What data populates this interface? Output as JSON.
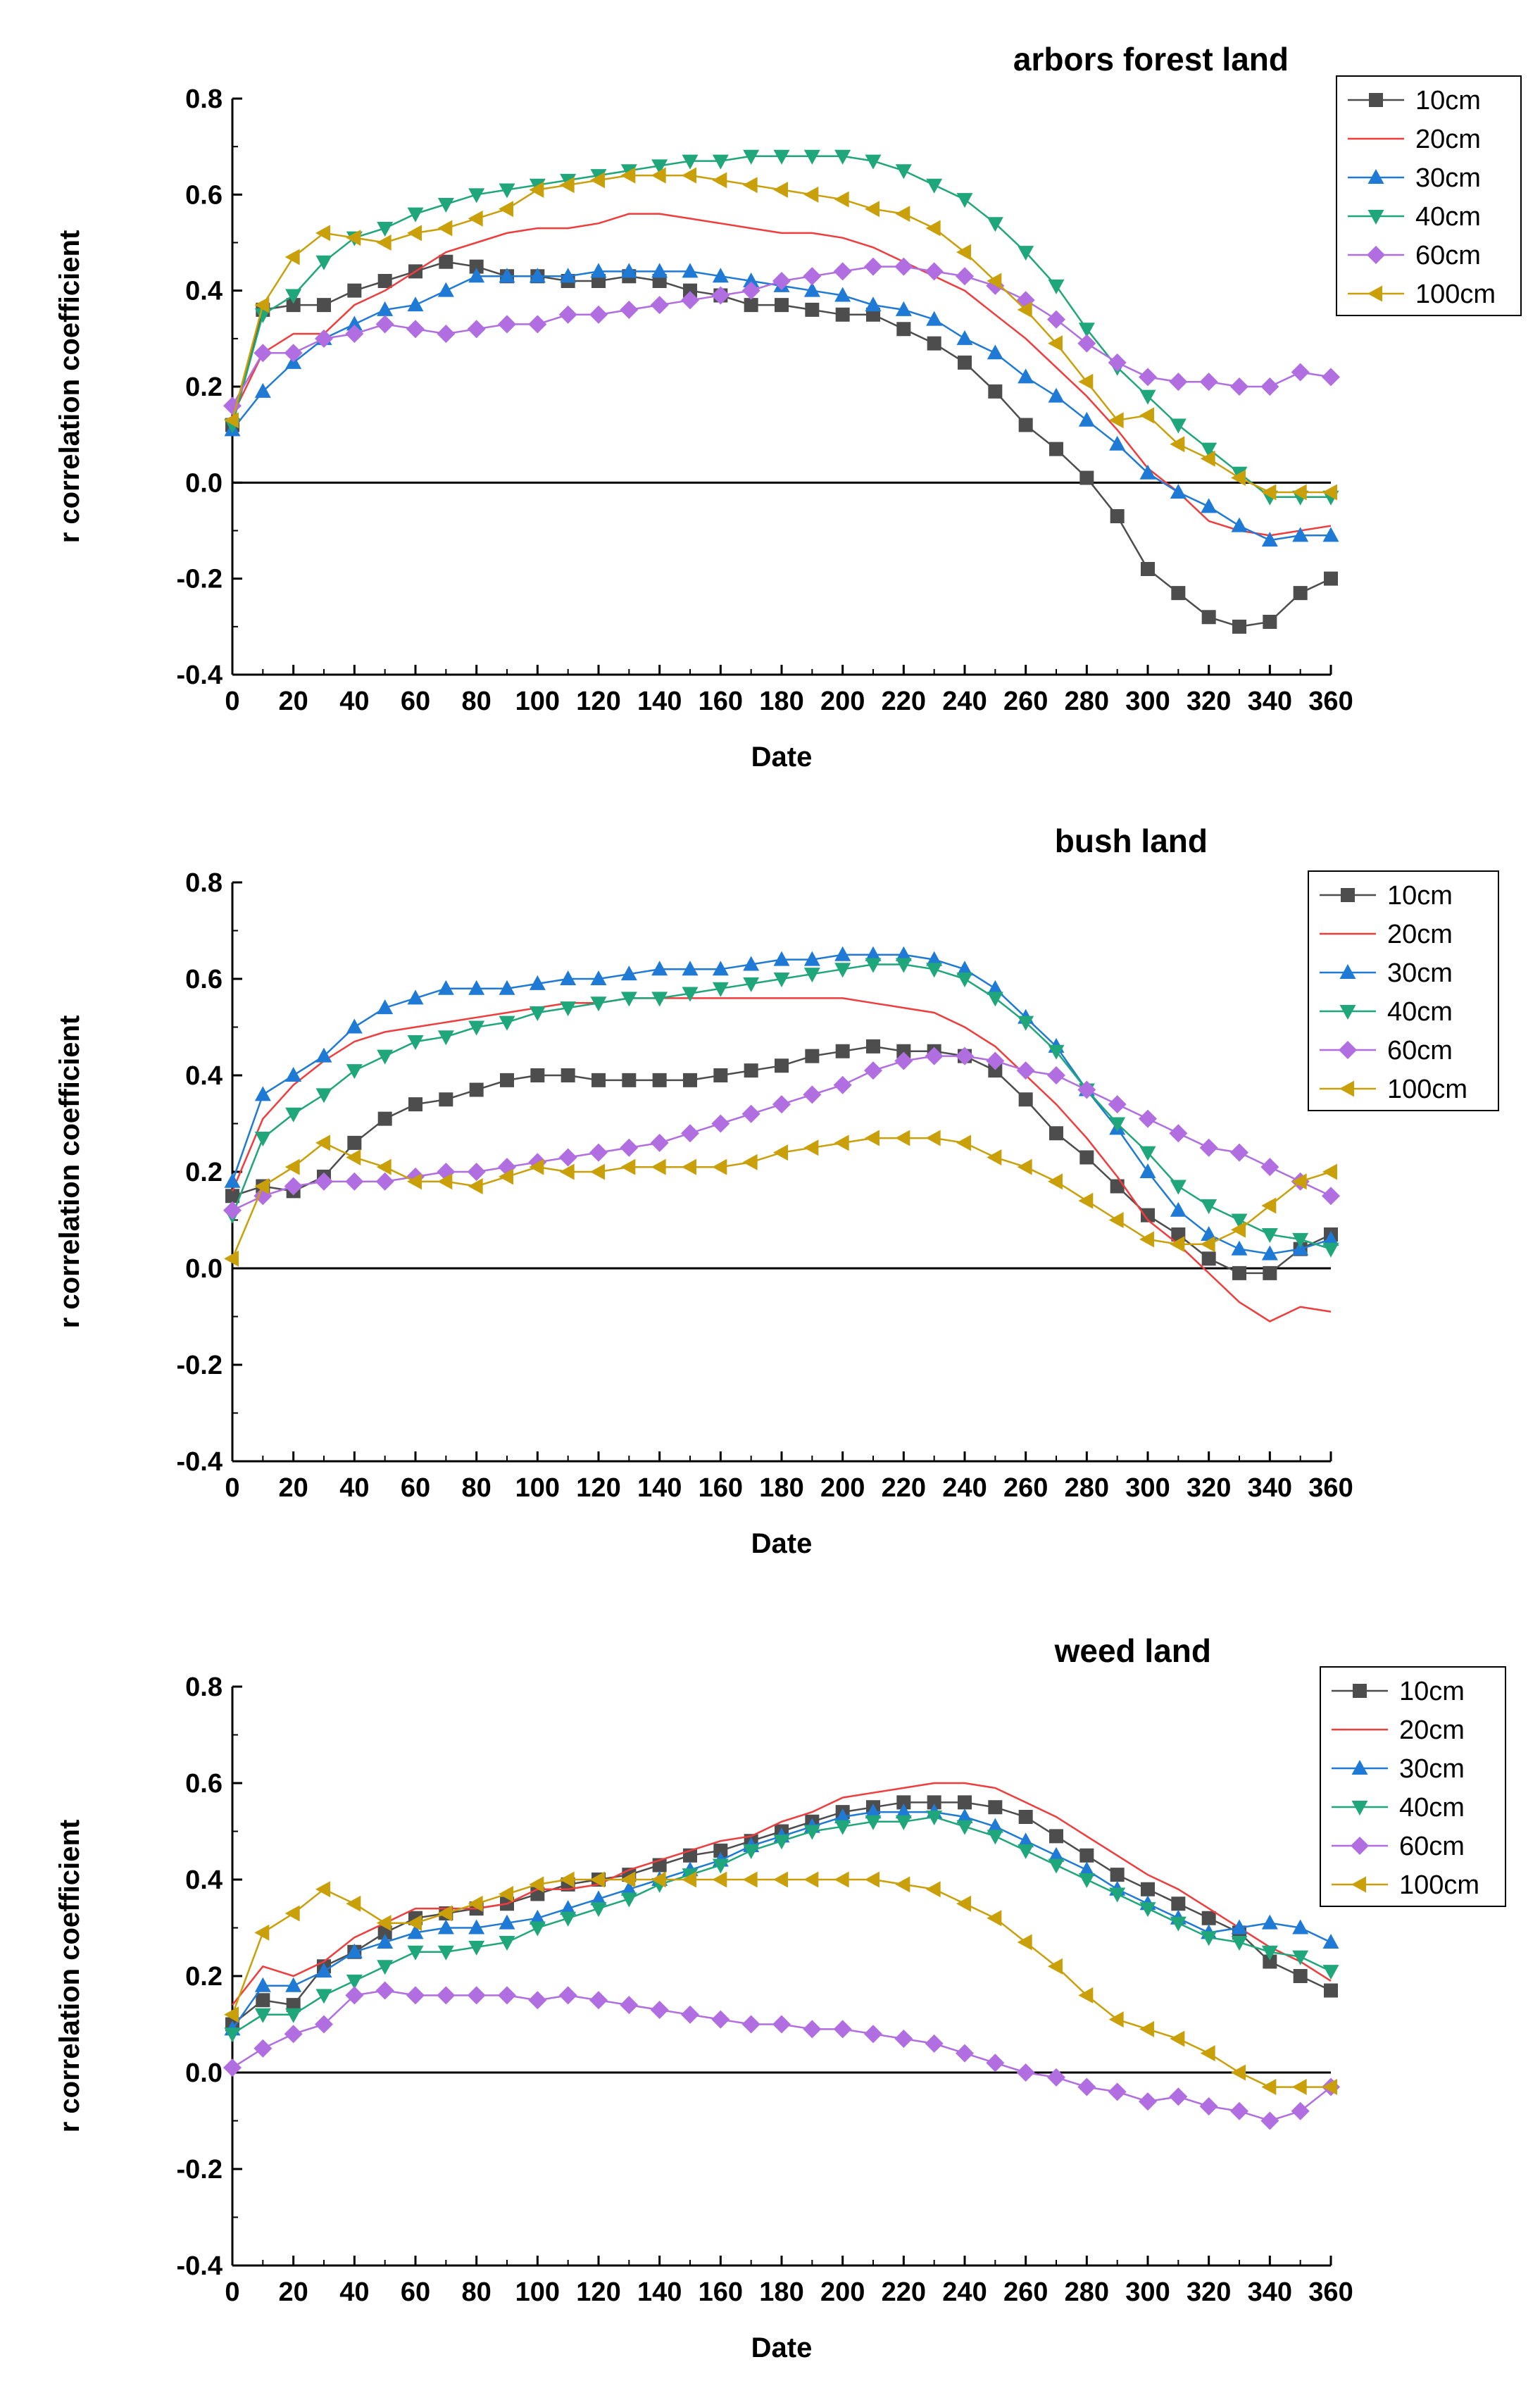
{
  "chart_data": [
    {
      "type": "line",
      "title": "arbors forest land",
      "xlabel": "Date",
      "ylabel": "r  correlation coefficient",
      "xlim": [
        0,
        360
      ],
      "ylim": [
        -0.4,
        0.8
      ],
      "xticks": [
        0,
        20,
        40,
        60,
        80,
        100,
        120,
        140,
        160,
        180,
        200,
        220,
        240,
        260,
        280,
        300,
        320,
        340,
        360
      ],
      "yticks": [
        -0.4,
        -0.2,
        0.0,
        0.2,
        0.4,
        0.6,
        0.8
      ],
      "x": [
        0,
        10,
        20,
        30,
        40,
        50,
        60,
        70,
        80,
        90,
        100,
        110,
        120,
        130,
        140,
        150,
        160,
        170,
        180,
        190,
        200,
        210,
        220,
        230,
        240,
        250,
        260,
        270,
        280,
        290,
        300,
        310,
        320,
        330,
        340,
        350,
        360
      ],
      "series": [
        {
          "name": "10cm",
          "color": "#4d4d4d",
          "marker": "square",
          "values": [
            0.12,
            0.36,
            0.37,
            0.37,
            0.4,
            0.42,
            0.44,
            0.46,
            0.45,
            0.43,
            0.43,
            0.42,
            0.42,
            0.43,
            0.42,
            0.4,
            0.39,
            0.37,
            0.37,
            0.36,
            0.35,
            0.35,
            0.32,
            0.29,
            0.25,
            0.19,
            0.12,
            0.07,
            0.01,
            -0.07,
            -0.18,
            -0.23,
            -0.28,
            -0.3,
            -0.29,
            -0.23,
            -0.2
          ]
        },
        {
          "name": "20cm",
          "color": "#f03c3c",
          "marker": "circle",
          "values": [
            0.14,
            0.27,
            0.31,
            0.31,
            0.37,
            0.4,
            0.44,
            0.48,
            0.5,
            0.52,
            0.53,
            0.53,
            0.54,
            0.56,
            0.56,
            0.55,
            0.54,
            0.53,
            0.52,
            0.52,
            0.51,
            0.49,
            0.46,
            0.43,
            0.4,
            0.35,
            0.3,
            0.24,
            0.18,
            0.11,
            0.03,
            -0.02,
            -0.08,
            -0.1,
            -0.11,
            -0.1,
            -0.09
          ]
        },
        {
          "name": "30cm",
          "color": "#1f7ad6",
          "marker": "triangle-up",
          "values": [
            0.11,
            0.19,
            0.25,
            0.3,
            0.33,
            0.36,
            0.37,
            0.4,
            0.43,
            0.43,
            0.43,
            0.43,
            0.44,
            0.44,
            0.44,
            0.44,
            0.43,
            0.42,
            0.41,
            0.4,
            0.39,
            0.37,
            0.36,
            0.34,
            0.3,
            0.27,
            0.22,
            0.18,
            0.13,
            0.08,
            0.02,
            -0.02,
            -0.05,
            -0.09,
            -0.12,
            -0.11,
            -0.11
          ]
        },
        {
          "name": "40cm",
          "color": "#1fa67a",
          "marker": "triangle-down",
          "values": [
            0.12,
            0.35,
            0.39,
            0.46,
            0.51,
            0.53,
            0.56,
            0.58,
            0.6,
            0.61,
            0.62,
            0.63,
            0.64,
            0.65,
            0.66,
            0.67,
            0.67,
            0.68,
            0.68,
            0.68,
            0.68,
            0.67,
            0.65,
            0.62,
            0.59,
            0.54,
            0.48,
            0.41,
            0.32,
            0.24,
            0.18,
            0.12,
            0.07,
            0.02,
            -0.03,
            -0.03,
            -0.03
          ]
        },
        {
          "name": "60cm",
          "color": "#b06ee0",
          "marker": "diamond",
          "values": [
            0.16,
            0.27,
            0.27,
            0.3,
            0.31,
            0.33,
            0.32,
            0.31,
            0.32,
            0.33,
            0.33,
            0.35,
            0.35,
            0.36,
            0.37,
            0.38,
            0.39,
            0.4,
            0.42,
            0.43,
            0.44,
            0.45,
            0.45,
            0.44,
            0.43,
            0.41,
            0.38,
            0.34,
            0.29,
            0.25,
            0.22,
            0.21,
            0.21,
            0.2,
            0.2,
            0.23,
            0.22
          ]
        },
        {
          "name": "100cm",
          "color": "#c9a00a",
          "marker": "triangle-left",
          "values": [
            0.13,
            0.37,
            0.47,
            0.52,
            0.51,
            0.5,
            0.52,
            0.53,
            0.55,
            0.57,
            0.61,
            0.62,
            0.63,
            0.64,
            0.64,
            0.64,
            0.63,
            0.62,
            0.61,
            0.6,
            0.59,
            0.57,
            0.56,
            0.53,
            0.48,
            0.42,
            0.36,
            0.29,
            0.21,
            0.13,
            0.14,
            0.08,
            0.05,
            0.01,
            -0.02,
            -0.02,
            -0.02
          ]
        }
      ]
    },
    {
      "type": "line",
      "title": "bush land",
      "xlabel": "Date",
      "ylabel": "r  correlation coefficient",
      "xlim": [
        0,
        360
      ],
      "ylim": [
        -0.4,
        0.8
      ],
      "xticks": [
        0,
        20,
        40,
        60,
        80,
        100,
        120,
        140,
        160,
        180,
        200,
        220,
        240,
        260,
        280,
        300,
        320,
        340,
        360
      ],
      "yticks": [
        -0.4,
        -0.2,
        0.0,
        0.2,
        0.4,
        0.6,
        0.8
      ],
      "x": [
        0,
        10,
        20,
        30,
        40,
        50,
        60,
        70,
        80,
        90,
        100,
        110,
        120,
        130,
        140,
        150,
        160,
        170,
        180,
        190,
        200,
        210,
        220,
        230,
        240,
        250,
        260,
        270,
        280,
        290,
        300,
        310,
        320,
        330,
        340,
        350,
        360
      ],
      "series": [
        {
          "name": "10cm",
          "color": "#4d4d4d",
          "marker": "square",
          "values": [
            0.15,
            0.17,
            0.16,
            0.19,
            0.26,
            0.31,
            0.34,
            0.35,
            0.37,
            0.39,
            0.4,
            0.4,
            0.39,
            0.39,
            0.39,
            0.39,
            0.4,
            0.41,
            0.42,
            0.44,
            0.45,
            0.46,
            0.45,
            0.45,
            0.44,
            0.41,
            0.35,
            0.28,
            0.23,
            0.17,
            0.11,
            0.07,
            0.02,
            -0.01,
            -0.01,
            0.04,
            0.07
          ]
        },
        {
          "name": "20cm",
          "color": "#f03c3c",
          "marker": "circle",
          "values": [
            0.16,
            0.31,
            0.38,
            0.43,
            0.47,
            0.49,
            0.5,
            0.51,
            0.52,
            0.53,
            0.54,
            0.55,
            0.55,
            0.56,
            0.56,
            0.56,
            0.56,
            0.56,
            0.56,
            0.56,
            0.56,
            0.55,
            0.54,
            0.53,
            0.5,
            0.46,
            0.4,
            0.34,
            0.27,
            0.19,
            0.1,
            0.05,
            -0.01,
            -0.07,
            -0.11,
            -0.08,
            -0.09
          ]
        },
        {
          "name": "30cm",
          "color": "#1f7ad6",
          "marker": "triangle-up",
          "values": [
            0.18,
            0.36,
            0.4,
            0.44,
            0.5,
            0.54,
            0.56,
            0.58,
            0.58,
            0.58,
            0.59,
            0.6,
            0.6,
            0.61,
            0.62,
            0.62,
            0.62,
            0.63,
            0.64,
            0.64,
            0.65,
            0.65,
            0.65,
            0.64,
            0.62,
            0.58,
            0.52,
            0.46,
            0.37,
            0.29,
            0.2,
            0.12,
            0.07,
            0.04,
            0.03,
            0.04,
            0.06
          ]
        },
        {
          "name": "40cm",
          "color": "#1fa67a",
          "marker": "triangle-down",
          "values": [
            0.11,
            0.27,
            0.32,
            0.36,
            0.41,
            0.44,
            0.47,
            0.48,
            0.5,
            0.51,
            0.53,
            0.54,
            0.55,
            0.56,
            0.56,
            0.57,
            0.58,
            0.59,
            0.6,
            0.61,
            0.62,
            0.63,
            0.63,
            0.62,
            0.6,
            0.56,
            0.51,
            0.45,
            0.37,
            0.3,
            0.24,
            0.17,
            0.13,
            0.1,
            0.07,
            0.06,
            0.04
          ]
        },
        {
          "name": "60cm",
          "color": "#b06ee0",
          "marker": "diamond",
          "values": [
            0.12,
            0.15,
            0.17,
            0.18,
            0.18,
            0.18,
            0.19,
            0.2,
            0.2,
            0.21,
            0.22,
            0.23,
            0.24,
            0.25,
            0.26,
            0.28,
            0.3,
            0.32,
            0.34,
            0.36,
            0.38,
            0.41,
            0.43,
            0.44,
            0.44,
            0.43,
            0.41,
            0.4,
            0.37,
            0.34,
            0.31,
            0.28,
            0.25,
            0.24,
            0.21,
            0.18,
            0.15
          ]
        },
        {
          "name": "100cm",
          "color": "#c9a00a",
          "marker": "triangle-left",
          "values": [
            0.02,
            0.17,
            0.21,
            0.26,
            0.23,
            0.21,
            0.18,
            0.18,
            0.17,
            0.19,
            0.21,
            0.2,
            0.2,
            0.21,
            0.21,
            0.21,
            0.21,
            0.22,
            0.24,
            0.25,
            0.26,
            0.27,
            0.27,
            0.27,
            0.26,
            0.23,
            0.21,
            0.18,
            0.14,
            0.1,
            0.06,
            0.05,
            0.05,
            0.08,
            0.13,
            0.18,
            0.2
          ]
        }
      ]
    },
    {
      "type": "line",
      "title": "weed land",
      "xlabel": "Date",
      "ylabel": "r  correlation coefficient",
      "xlim": [
        0,
        360
      ],
      "ylim": [
        -0.4,
        0.8
      ],
      "xticks": [
        0,
        20,
        40,
        60,
        80,
        100,
        120,
        140,
        160,
        180,
        200,
        220,
        240,
        260,
        280,
        300,
        320,
        340,
        360
      ],
      "yticks": [
        -0.4,
        -0.2,
        0.0,
        0.2,
        0.4,
        0.6,
        0.8
      ],
      "x": [
        0,
        10,
        20,
        30,
        40,
        50,
        60,
        70,
        80,
        90,
        100,
        110,
        120,
        130,
        140,
        150,
        160,
        170,
        180,
        190,
        200,
        210,
        220,
        230,
        240,
        250,
        260,
        270,
        280,
        290,
        300,
        310,
        320,
        330,
        340,
        350,
        360
      ],
      "series": [
        {
          "name": "10cm",
          "color": "#4d4d4d",
          "marker": "square",
          "values": [
            0.1,
            0.15,
            0.14,
            0.22,
            0.25,
            0.29,
            0.32,
            0.33,
            0.34,
            0.35,
            0.37,
            0.39,
            0.4,
            0.41,
            0.43,
            0.45,
            0.46,
            0.48,
            0.5,
            0.52,
            0.54,
            0.55,
            0.56,
            0.56,
            0.56,
            0.55,
            0.53,
            0.49,
            0.45,
            0.41,
            0.38,
            0.35,
            0.32,
            0.29,
            0.23,
            0.2,
            0.17
          ]
        },
        {
          "name": "20cm",
          "color": "#f03c3c",
          "marker": "circle",
          "values": [
            0.14,
            0.22,
            0.2,
            0.23,
            0.28,
            0.31,
            0.34,
            0.34,
            0.34,
            0.35,
            0.38,
            0.38,
            0.39,
            0.42,
            0.44,
            0.46,
            0.48,
            0.49,
            0.52,
            0.54,
            0.57,
            0.58,
            0.59,
            0.6,
            0.6,
            0.59,
            0.56,
            0.53,
            0.49,
            0.45,
            0.41,
            0.38,
            0.34,
            0.3,
            0.26,
            0.23,
            0.19
          ]
        },
        {
          "name": "30cm",
          "color": "#1f7ad6",
          "marker": "triangle-up",
          "values": [
            0.09,
            0.18,
            0.18,
            0.21,
            0.25,
            0.27,
            0.29,
            0.3,
            0.3,
            0.31,
            0.32,
            0.34,
            0.36,
            0.38,
            0.4,
            0.42,
            0.44,
            0.47,
            0.49,
            0.51,
            0.53,
            0.54,
            0.54,
            0.54,
            0.53,
            0.51,
            0.48,
            0.45,
            0.42,
            0.38,
            0.35,
            0.32,
            0.29,
            0.3,
            0.31,
            0.3,
            0.27
          ]
        },
        {
          "name": "40cm",
          "color": "#1fa67a",
          "marker": "triangle-down",
          "values": [
            0.08,
            0.12,
            0.12,
            0.16,
            0.19,
            0.22,
            0.25,
            0.25,
            0.26,
            0.27,
            0.3,
            0.32,
            0.34,
            0.36,
            0.39,
            0.41,
            0.43,
            0.46,
            0.48,
            0.5,
            0.51,
            0.52,
            0.52,
            0.53,
            0.51,
            0.49,
            0.46,
            0.43,
            0.4,
            0.37,
            0.34,
            0.31,
            0.28,
            0.27,
            0.25,
            0.24,
            0.21
          ]
        },
        {
          "name": "60cm",
          "color": "#b06ee0",
          "marker": "diamond",
          "values": [
            0.01,
            0.05,
            0.08,
            0.1,
            0.16,
            0.17,
            0.16,
            0.16,
            0.16,
            0.16,
            0.15,
            0.16,
            0.15,
            0.14,
            0.13,
            0.12,
            0.11,
            0.1,
            0.1,
            0.09,
            0.09,
            0.08,
            0.07,
            0.06,
            0.04,
            0.02,
            0.0,
            -0.01,
            -0.03,
            -0.04,
            -0.06,
            -0.05,
            -0.07,
            -0.08,
            -0.1,
            -0.08,
            -0.03
          ]
        },
        {
          "name": "100cm",
          "color": "#c9a00a",
          "marker": "triangle-left",
          "values": [
            0.12,
            0.29,
            0.33,
            0.38,
            0.35,
            0.31,
            0.31,
            0.33,
            0.35,
            0.37,
            0.39,
            0.4,
            0.4,
            0.4,
            0.4,
            0.4,
            0.4,
            0.4,
            0.4,
            0.4,
            0.4,
            0.4,
            0.39,
            0.38,
            0.35,
            0.32,
            0.27,
            0.22,
            0.16,
            0.11,
            0.09,
            0.07,
            0.04,
            0.0,
            -0.03,
            -0.03,
            -0.03
          ]
        }
      ]
    }
  ]
}
